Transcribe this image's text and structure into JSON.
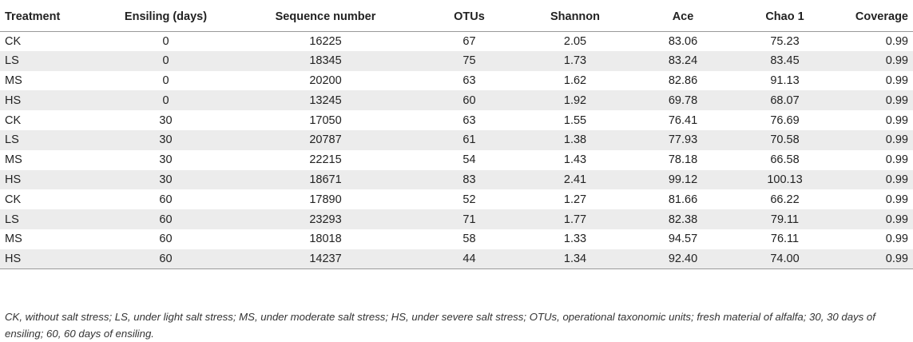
{
  "table": {
    "headers": [
      "Treatment",
      "Ensiling (days)",
      "Sequence number",
      "OTUs",
      "Shannon",
      "Ace",
      "Chao 1",
      "Coverage"
    ],
    "rows": [
      [
        "CK",
        "0",
        "16225",
        "67",
        "2.05",
        "83.06",
        "75.23",
        "0.99"
      ],
      [
        "LS",
        "0",
        "18345",
        "75",
        "1.73",
        "83.24",
        "83.45",
        "0.99"
      ],
      [
        "MS",
        "0",
        "20200",
        "63",
        "1.62",
        "82.86",
        "91.13",
        "0.99"
      ],
      [
        "HS",
        "0",
        "13245",
        "60",
        "1.92",
        "69.78",
        "68.07",
        "0.99"
      ],
      [
        "CK",
        "30",
        "17050",
        "63",
        "1.55",
        "76.41",
        "76.69",
        "0.99"
      ],
      [
        "LS",
        "30",
        "20787",
        "61",
        "1.38",
        "77.93",
        "70.58",
        "0.99"
      ],
      [
        "MS",
        "30",
        "22215",
        "54",
        "1.43",
        "78.18",
        "66.58",
        "0.99"
      ],
      [
        "HS",
        "30",
        "18671",
        "83",
        "2.41",
        "99.12",
        "100.13",
        "0.99"
      ],
      [
        "CK",
        "60",
        "17890",
        "52",
        "1.27",
        "81.66",
        "66.22",
        "0.99"
      ],
      [
        "LS",
        "60",
        "23293",
        "71",
        "1.77",
        "82.38",
        "79.11",
        "0.99"
      ],
      [
        "MS",
        "60",
        "18018",
        "58",
        "1.33",
        "94.57",
        "76.11",
        "0.99"
      ],
      [
        "HS",
        "60",
        "14237",
        "44",
        "1.34",
        "92.40",
        "74.00",
        "0.99"
      ]
    ]
  },
  "footnote": "CK, without salt stress; LS, under light salt stress; MS, under moderate salt stress; HS, under severe salt stress; OTUs, operational taxonomic units; fresh material of alfalfa; 30, 30 days of ensiling; 60, 60 days of ensiling."
}
